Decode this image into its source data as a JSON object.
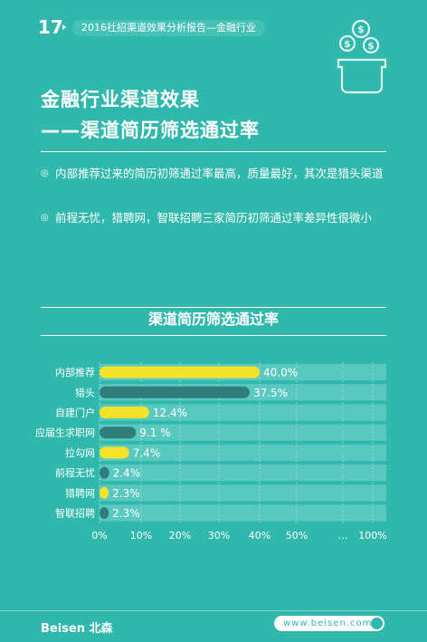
{
  "header": {
    "page_number": "17",
    "subtitle": "2016社招渠道效果分析报告—金融行业"
  },
  "title": {
    "line1": "金融行业渠道效果",
    "line2": "——渠道简历筛选通过率"
  },
  "bullets": [
    "内部推荐过来的简历初筛通过率最高，质量最好，其次是猎头渠道",
    "前程无忧，猎聘网，智联招聘三家简历初筛通过率差异性很微小"
  ],
  "bullet_mark": "◎",
  "colors": {
    "background": "#2fb8ab",
    "bar_yellow": "#f5e22a",
    "bar_dark": "#2f7e79",
    "row_band": "#59c8be"
  },
  "chart_data": {
    "type": "bar",
    "orientation": "horizontal",
    "title": "渠道简历筛选通过率",
    "categories": [
      "内部推荐",
      "猎头",
      "自建门户",
      "应届生求职网",
      "拉勾网",
      "前程无忧",
      "猎聘网",
      "智联招聘"
    ],
    "values": [
      40.0,
      37.5,
      12.4,
      9.1,
      7.4,
      2.4,
      2.3,
      2.3
    ],
    "value_labels": [
      "40.0%",
      "37.5%",
      "12.4%",
      "9.1 %",
      "7.4%",
      "2.4%",
      "2.3%",
      "2.3%"
    ],
    "bar_colors": [
      "yellow",
      "dark",
      "yellow",
      "dark",
      "yellow",
      "dark",
      "yellow",
      "dark"
    ],
    "x_ticks": [
      "0%",
      "10%",
      "20%",
      "30%",
      "40%",
      "50%",
      "…",
      "100%"
    ],
    "xlim": [
      0,
      100
    ],
    "axis_break": "…",
    "xlabel": "",
    "ylabel": ""
  },
  "footer": {
    "brand": "Beisen 北森",
    "url": "www.beisen.com"
  }
}
